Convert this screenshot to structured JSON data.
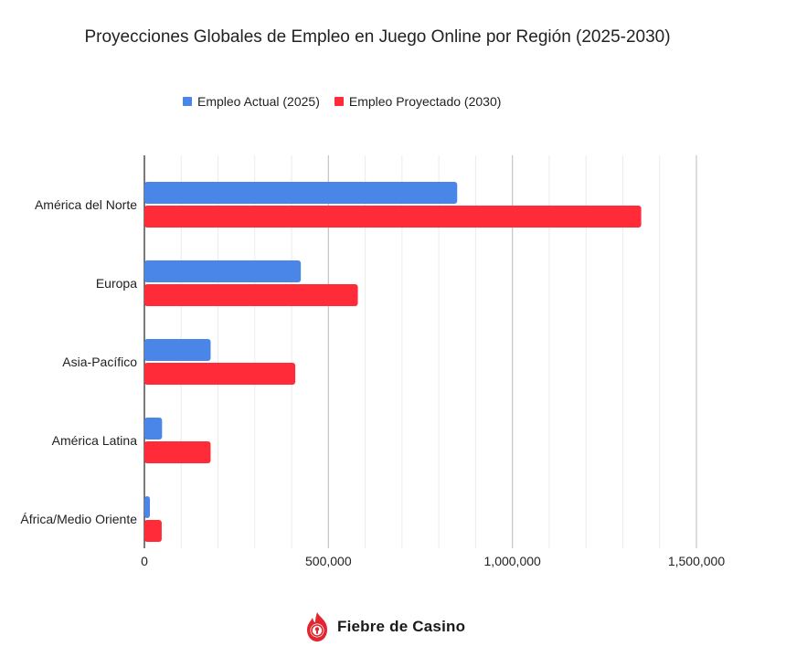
{
  "chart_data": {
    "type": "bar",
    "orientation": "horizontal",
    "title": "Proyecciones Globales de Empleo en Juego Online por Región (2025-2030)",
    "categories": [
      "América del Norte",
      "Europa",
      "Asia-Pacífico",
      "América Latina",
      "África/Medio Oriente"
    ],
    "series": [
      {
        "name": "Empleo Actual (2025)",
        "color": "#4a86e8",
        "values": [
          850000,
          425000,
          180000,
          48000,
          15000
        ]
      },
      {
        "name": "Empleo Proyectado (2030)",
        "color": "#ff2b38",
        "values": [
          1350000,
          580000,
          410000,
          180000,
          47000
        ]
      }
    ],
    "xlim": [
      0,
      1500000
    ],
    "xticks": [
      0,
      500000,
      1000000,
      1500000
    ],
    "xtick_labels": [
      "0",
      "500,000",
      "1,000,000",
      "1,500,000"
    ],
    "xlabel": "",
    "ylabel": "",
    "grid": true,
    "legend_position": "top"
  },
  "footer": {
    "brand": "Fiebre de Casino",
    "brand_color": "#e0262f"
  }
}
